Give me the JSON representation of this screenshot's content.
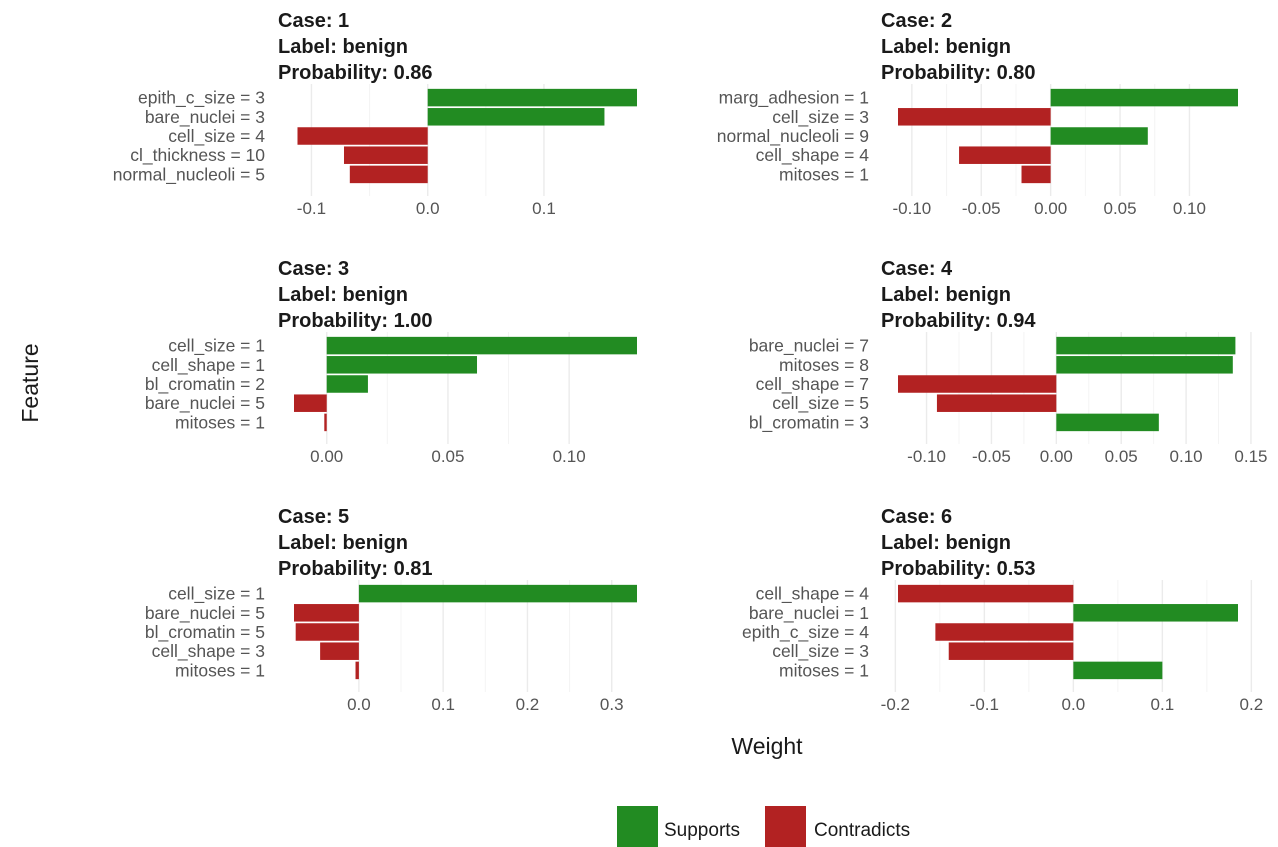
{
  "chart_data": {
    "type": "bar",
    "orientation": "horizontal",
    "xlabel": "Weight",
    "ylabel": "Feature",
    "grid": true,
    "legend": {
      "position": "bottom",
      "entries": [
        {
          "label": "Supports",
          "color": "#228B22"
        },
        {
          "label": "Contradicts",
          "color": "#B22222"
        }
      ]
    },
    "panels": [
      {
        "case_text": "Case: 1",
        "label_text": "Label: benign",
        "prob_text": "Probability: 0.86",
        "xlim": [
          -0.115,
          0.18
        ],
        "ticks": [
          {
            "v": -0.1,
            "t": "-0.1"
          },
          {
            "v": 0,
            "t": "0.0"
          },
          {
            "v": 0.1,
            "t": "0.1"
          }
        ],
        "bars": [
          {
            "feature": "epith_c_size = 3",
            "value": 0.18
          },
          {
            "feature": "bare_nuclei = 3",
            "value": 0.152
          },
          {
            "feature": "cell_size = 4",
            "value": -0.112
          },
          {
            "feature": "cl_thickness = 10",
            "value": -0.072
          },
          {
            "feature": "normal_nucleoli = 5",
            "value": -0.067
          }
        ]
      },
      {
        "case_text": "Case: 2",
        "label_text": "Label: benign",
        "prob_text": "Probability: 0.80",
        "xlim": [
          -0.11,
          0.135
        ],
        "ticks": [
          {
            "v": -0.1,
            "t": "-0.10"
          },
          {
            "v": -0.05,
            "t": "-0.05"
          },
          {
            "v": 0,
            "t": "0.00"
          },
          {
            "v": 0.05,
            "t": "0.05"
          },
          {
            "v": 0.1,
            "t": "0.10"
          }
        ],
        "bars": [
          {
            "feature": "marg_adhesion = 1",
            "value": 0.135
          },
          {
            "feature": "cell_size = 3",
            "value": -0.11
          },
          {
            "feature": "normal_nucleoli = 9",
            "value": 0.07
          },
          {
            "feature": "cell_shape = 4",
            "value": -0.066
          },
          {
            "feature": "mitoses = 1",
            "value": -0.021
          }
        ]
      },
      {
        "case_text": "Case: 3",
        "label_text": "Label: benign",
        "prob_text": "Probability: 1.00",
        "xlim": [
          -0.0135,
          0.128
        ],
        "ticks": [
          {
            "v": 0,
            "t": "0.00"
          },
          {
            "v": 0.05,
            "t": "0.05"
          },
          {
            "v": 0.1,
            "t": "0.10"
          }
        ],
        "bars": [
          {
            "feature": "cell_size = 1",
            "value": 0.128
          },
          {
            "feature": "cell_shape = 1",
            "value": 0.062
          },
          {
            "feature": "bl_cromatin = 2",
            "value": 0.017
          },
          {
            "feature": "bare_nuclei = 5",
            "value": -0.0135
          },
          {
            "feature": "mitoses = 1",
            "value": -0.001
          }
        ]
      },
      {
        "case_text": "Case: 4",
        "label_text": "Label: benign",
        "prob_text": "Probability: 0.94",
        "xlim": [
          -0.122,
          0.14
        ],
        "ticks": [
          {
            "v": -0.1,
            "t": "-0.10"
          },
          {
            "v": -0.05,
            "t": "-0.05"
          },
          {
            "v": 0,
            "t": "0.00"
          },
          {
            "v": 0.05,
            "t": "0.05"
          },
          {
            "v": 0.1,
            "t": "0.10"
          },
          {
            "v": 0.15,
            "t": "0.15"
          }
        ],
        "bars": [
          {
            "feature": "bare_nuclei = 7",
            "value": 0.138
          },
          {
            "feature": "mitoses = 8",
            "value": 0.136
          },
          {
            "feature": "cell_shape = 7",
            "value": -0.122
          },
          {
            "feature": "cell_size = 5",
            "value": -0.092
          },
          {
            "feature": "bl_cromatin = 3",
            "value": 0.079
          }
        ]
      },
      {
        "case_text": "Case: 5",
        "label_text": "Label: benign",
        "prob_text": "Probability: 0.81",
        "xlim": [
          -0.077,
          0.33
        ],
        "ticks": [
          {
            "v": 0,
            "t": "0.0"
          },
          {
            "v": 0.1,
            "t": "0.1"
          },
          {
            "v": 0.2,
            "t": "0.2"
          },
          {
            "v": 0.3,
            "t": "0.3"
          }
        ],
        "bars": [
          {
            "feature": "cell_size = 1",
            "value": 0.33
          },
          {
            "feature": "bare_nuclei = 5",
            "value": -0.077
          },
          {
            "feature": "bl_cromatin = 5",
            "value": -0.075
          },
          {
            "feature": "cell_shape = 3",
            "value": -0.046
          },
          {
            "feature": "mitoses = 1",
            "value": -0.004
          }
        ]
      },
      {
        "case_text": "Case: 6",
        "label_text": "Label: benign",
        "prob_text": "Probability: 0.53",
        "xlim": [
          -0.197,
          0.185
        ],
        "ticks": [
          {
            "v": -0.2,
            "t": "-0.2"
          },
          {
            "v": -0.1,
            "t": "-0.1"
          },
          {
            "v": 0,
            "t": "0.0"
          },
          {
            "v": 0.1,
            "t": "0.1"
          },
          {
            "v": 0.2,
            "t": "0.2"
          }
        ],
        "bars": [
          {
            "feature": "cell_shape = 4",
            "value": -0.197
          },
          {
            "feature": "bare_nuclei = 1",
            "value": 0.185
          },
          {
            "feature": "epith_c_size = 4",
            "value": -0.155
          },
          {
            "feature": "cell_size = 3",
            "value": -0.14
          },
          {
            "feature": "mitoses = 1",
            "value": 0.1
          }
        ]
      }
    ]
  }
}
